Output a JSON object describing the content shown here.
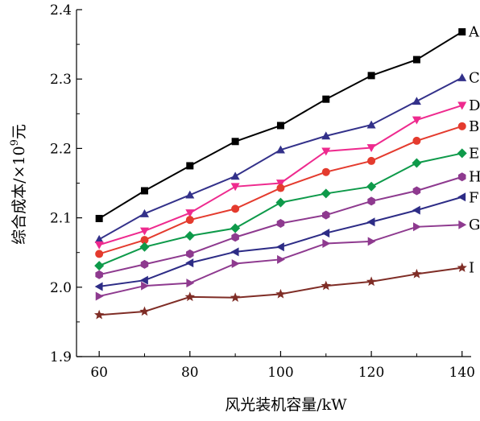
{
  "chart_data": {
    "type": "line",
    "xlabel": "风光装机容量/kW",
    "ylabel": "综合成本/×10⁹元",
    "xlim": [
      55,
      142
    ],
    "ylim": [
      1.9,
      2.4
    ],
    "xticks": [
      60,
      80,
      100,
      120,
      140
    ],
    "xtick_labels": [
      "60",
      "80",
      "100",
      "120",
      "140"
    ],
    "yticks": [
      1.9,
      2.0,
      2.1,
      2.2,
      2.3,
      2.4
    ],
    "ytick_labels": [
      "1.9",
      "2.0",
      "2.1",
      "2.2",
      "2.3",
      "2.4"
    ],
    "grid": false,
    "legend": "series labels at right end of each line",
    "x": [
      60,
      70,
      80,
      90,
      100,
      110,
      120,
      130,
      140
    ],
    "series": [
      {
        "name": "A",
        "color": "#000000",
        "marker": "square",
        "values": [
          2.099,
          2.139,
          2.175,
          2.21,
          2.233,
          2.271,
          2.305,
          2.328,
          2.368
        ]
      },
      {
        "name": "C",
        "color": "#33318a",
        "marker": "triangle-up",
        "values": [
          2.069,
          2.106,
          2.133,
          2.16,
          2.198,
          2.218,
          2.234,
          2.268,
          2.302
        ]
      },
      {
        "name": "D",
        "color": "#ee2a8e",
        "marker": "triangle-down",
        "values": [
          2.061,
          2.081,
          2.107,
          2.145,
          2.15,
          2.196,
          2.201,
          2.241,
          2.262
        ]
      },
      {
        "name": "B",
        "color": "#e43b2e",
        "marker": "circle",
        "values": [
          2.048,
          2.068,
          2.097,
          2.113,
          2.143,
          2.166,
          2.182,
          2.211,
          2.232
        ]
      },
      {
        "name": "E",
        "color": "#0e9a4a",
        "marker": "diamond",
        "values": [
          2.031,
          2.058,
          2.074,
          2.085,
          2.122,
          2.135,
          2.145,
          2.179,
          2.193
        ]
      },
      {
        "name": "H",
        "color": "#8e3a8f",
        "marker": "hexagon",
        "values": [
          2.018,
          2.033,
          2.048,
          2.072,
          2.092,
          2.104,
          2.124,
          2.139,
          2.159
        ]
      },
      {
        "name": "F",
        "color": "#2d2c86",
        "marker": "triangle-left",
        "values": [
          2.001,
          2.01,
          2.035,
          2.051,
          2.058,
          2.078,
          2.094,
          2.111,
          2.13
        ]
      },
      {
        "name": "G",
        "color": "#8e3a8f",
        "marker": "triangle-right",
        "values": [
          1.987,
          2.002,
          2.006,
          2.034,
          2.04,
          2.063,
          2.066,
          2.087,
          2.09
        ]
      },
      {
        "name": "I",
        "color": "#7f2d26",
        "marker": "star",
        "values": [
          1.96,
          1.965,
          1.986,
          1.985,
          1.99,
          2.002,
          2.008,
          2.019,
          2.028
        ]
      }
    ]
  }
}
